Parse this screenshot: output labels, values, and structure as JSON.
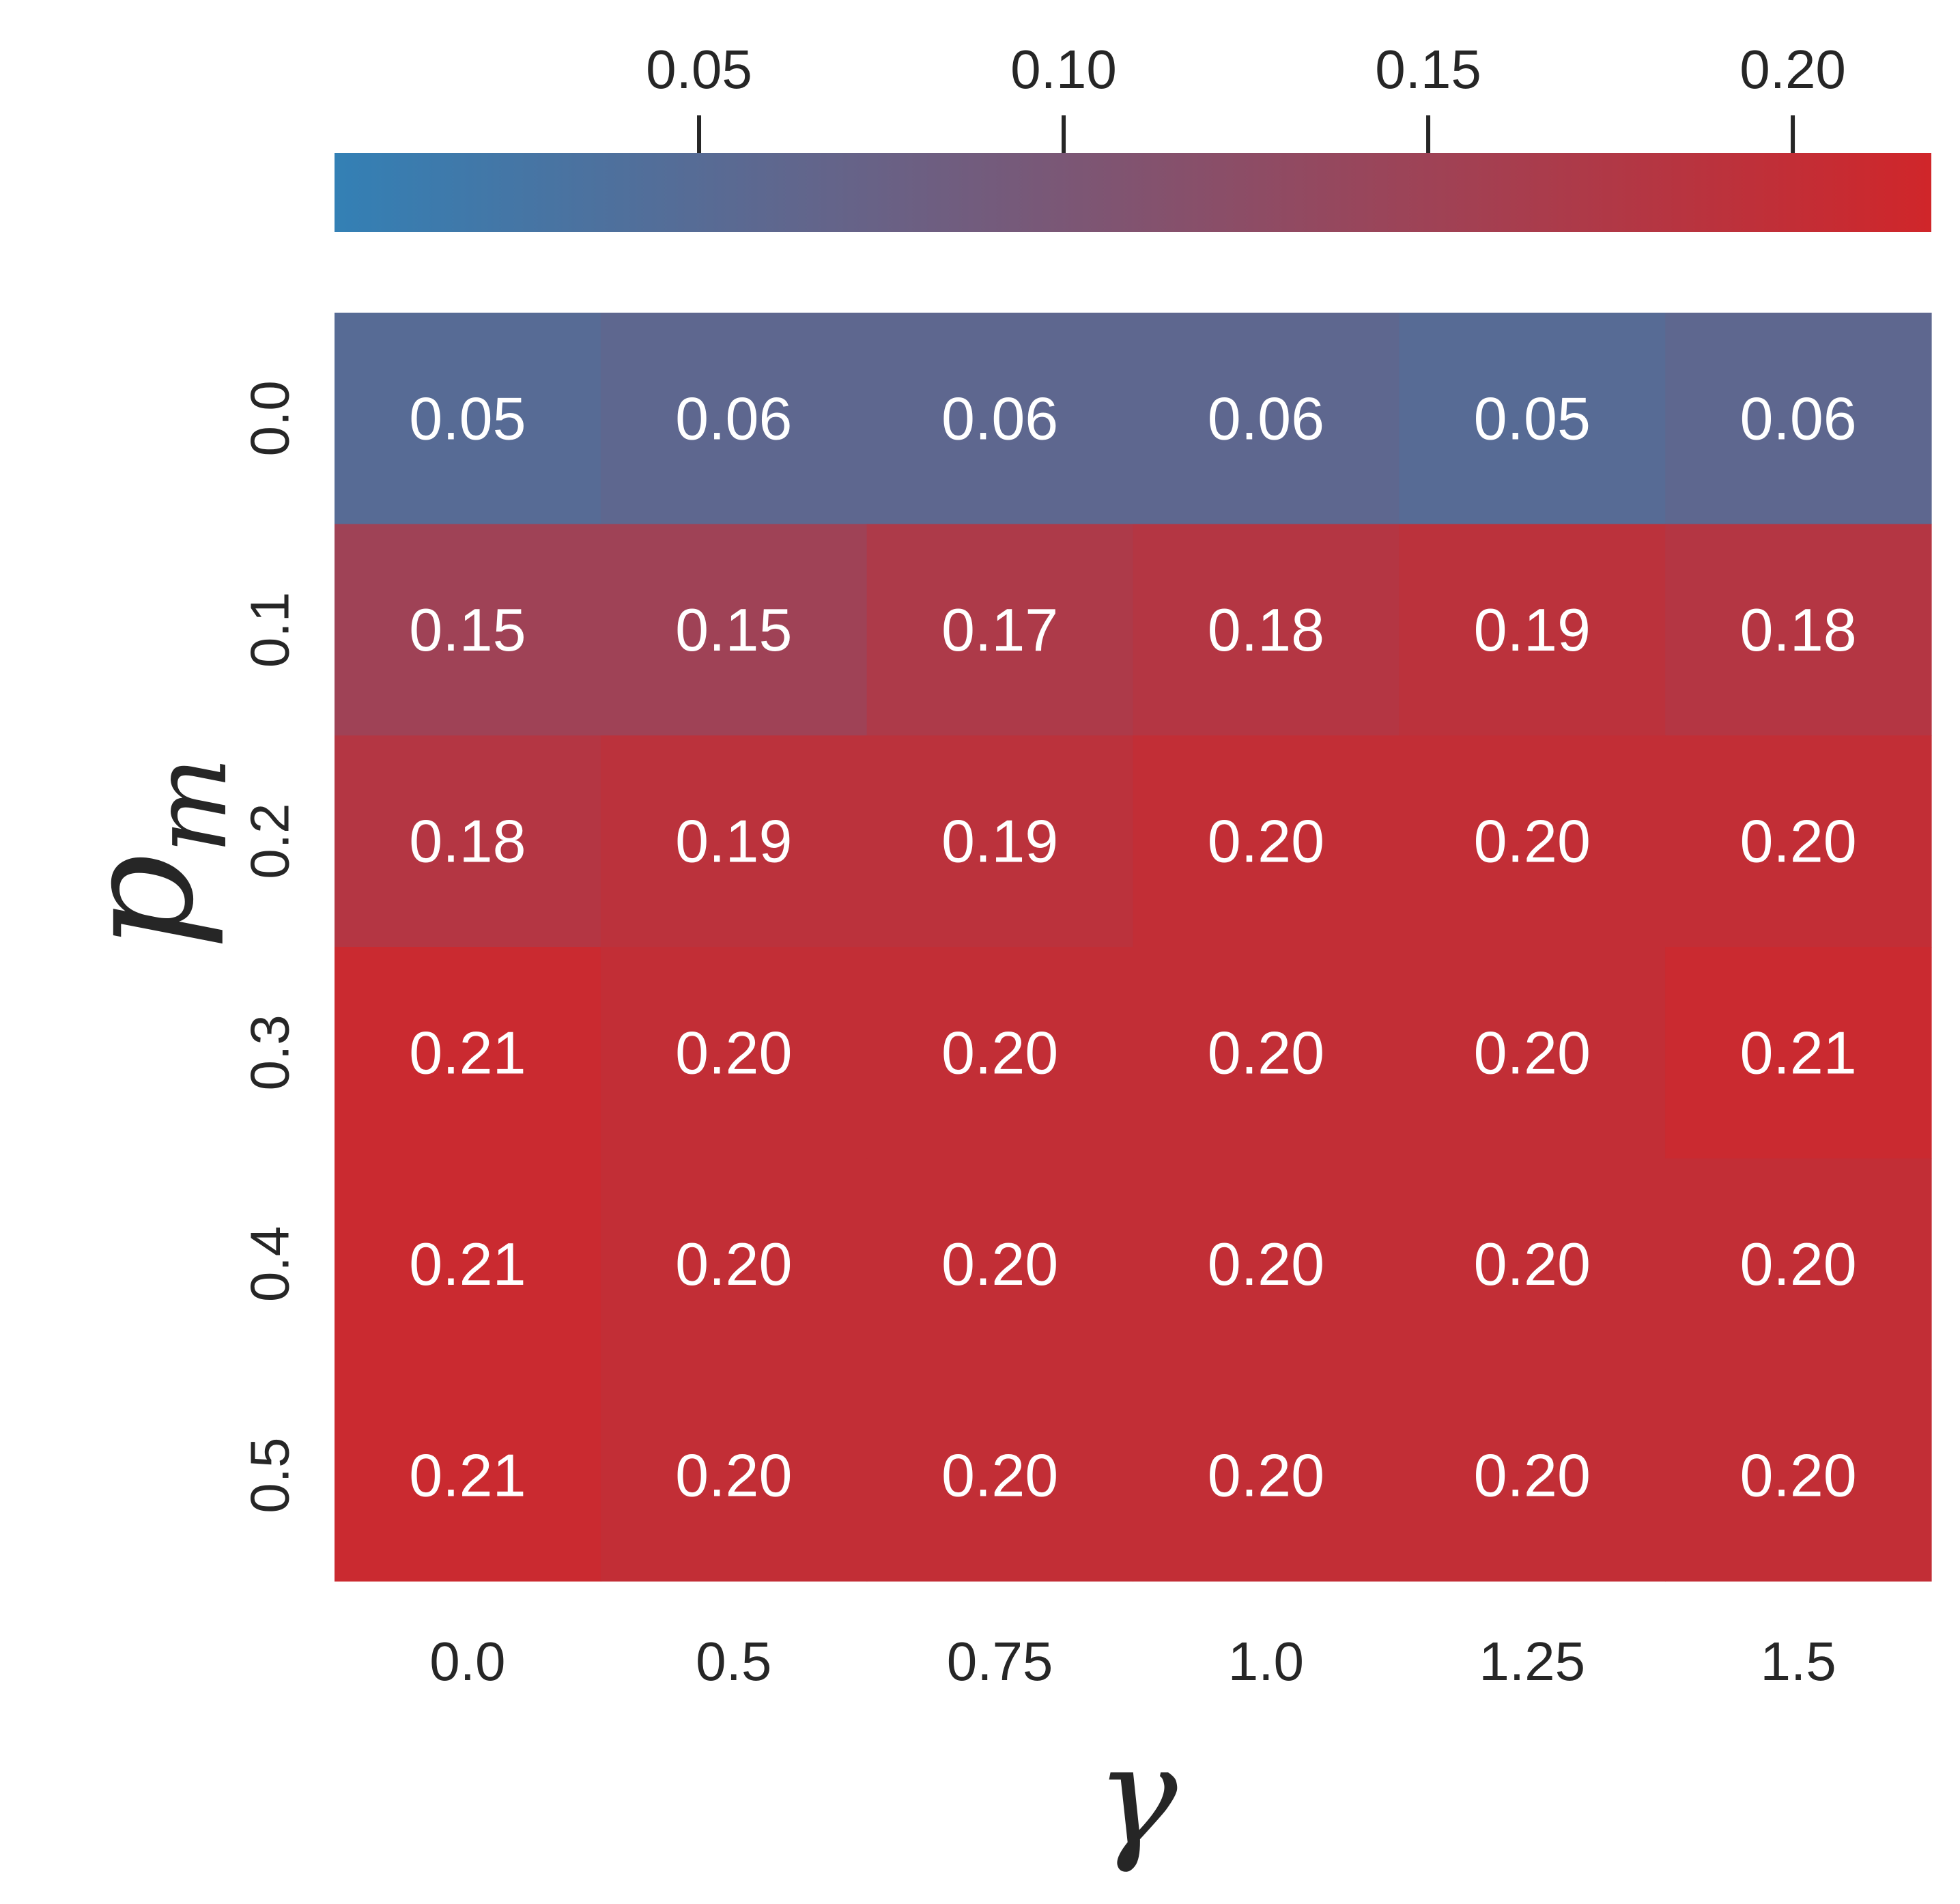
{
  "chart_data": {
    "type": "heatmap",
    "title": "",
    "xlabel": "γ",
    "ylabel_main": "p",
    "ylabel_sub": "m",
    "x_categories": [
      "0.0",
      "0.5",
      "0.75",
      "1.0",
      "1.25",
      "1.5"
    ],
    "y_categories": [
      "0.0",
      "0.1",
      "0.2",
      "0.3",
      "0.4",
      "0.5"
    ],
    "values": [
      [
        0.05,
        0.06,
        0.06,
        0.06,
        0.05,
        0.06
      ],
      [
        0.15,
        0.15,
        0.17,
        0.18,
        0.19,
        0.18
      ],
      [
        0.18,
        0.19,
        0.19,
        0.2,
        0.2,
        0.2
      ],
      [
        0.21,
        0.2,
        0.2,
        0.2,
        0.2,
        0.21
      ],
      [
        0.21,
        0.2,
        0.2,
        0.2,
        0.2,
        0.2
      ],
      [
        0.21,
        0.2,
        0.2,
        0.2,
        0.2,
        0.2
      ]
    ],
    "cell_labels": [
      [
        "0.05",
        "0.06",
        "0.06",
        "0.06",
        "0.05",
        "0.06"
      ],
      [
        "0.15",
        "0.15",
        "0.17",
        "0.18",
        "0.19",
        "0.18"
      ],
      [
        "0.18",
        "0.19",
        "0.19",
        "0.20",
        "0.20",
        "0.20"
      ],
      [
        "0.21",
        "0.20",
        "0.20",
        "0.20",
        "0.20",
        "0.21"
      ],
      [
        "0.21",
        "0.20",
        "0.20",
        "0.20",
        "0.20",
        "0.20"
      ],
      [
        "0.21",
        "0.20",
        "0.20",
        "0.20",
        "0.20",
        "0.20"
      ]
    ],
    "colorbar": {
      "position": "top",
      "range": [
        0.0,
        0.219
      ],
      "ticks": [
        0.05,
        0.1,
        0.15,
        0.2
      ],
      "tick_labels": [
        "0.05",
        "0.10",
        "0.15",
        "0.20"
      ],
      "color_low": "#3380b5",
      "color_high": "#d0262a"
    }
  }
}
